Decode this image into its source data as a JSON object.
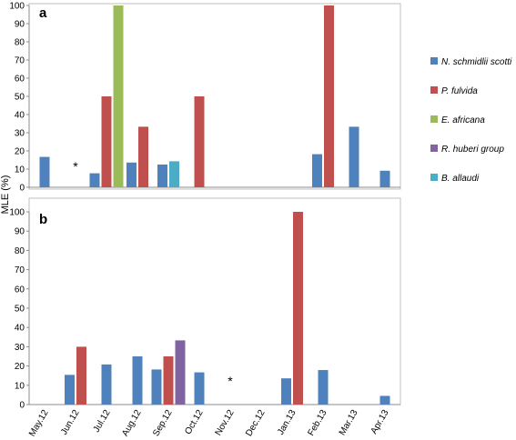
{
  "chart_data": {
    "type": "bar",
    "ylabel": "MLE (%)",
    "categories": [
      "May.12",
      "Jun.12",
      "Jul.12",
      "Aug.12",
      "Sep.12",
      "Oct.12",
      "Nov.12",
      "Dec.12",
      "Jan.13",
      "Feb.13",
      "Mar.13",
      "Apr.13"
    ],
    "ylim": [
      0,
      100
    ],
    "yticks": [
      0,
      10,
      20,
      30,
      40,
      50,
      60,
      70,
      80,
      90,
      100
    ],
    "grid": false,
    "legend_position": "right",
    "series_legend": [
      {
        "name": "N. schmidlii scotti",
        "color": "#4F81BD"
      },
      {
        "name": "P. fulvida",
        "color": "#C0504D"
      },
      {
        "name": "E. africana",
        "color": "#9BBB59"
      },
      {
        "name": "R. huberi group",
        "color": "#8064A2"
      },
      {
        "name": "B. allaudi",
        "color": "#4BACC6"
      }
    ],
    "panels": [
      {
        "label": "a",
        "annotation": {
          "text": "*",
          "category": "Jun.12"
        },
        "series": [
          {
            "name": "N. schmidlii scotti",
            "values": [
              16.7,
              null,
              7.7,
              13.6,
              12.5,
              null,
              null,
              null,
              null,
              18.2,
              33.3,
              9.1
            ]
          },
          {
            "name": "P. fulvida",
            "values": [
              null,
              null,
              50,
              33.3,
              null,
              50,
              null,
              null,
              null,
              100,
              null,
              null
            ]
          },
          {
            "name": "E. africana",
            "values": [
              null,
              null,
              100,
              null,
              null,
              null,
              null,
              null,
              null,
              null,
              null,
              null
            ]
          },
          {
            "name": "R. huberi group",
            "values": [
              null,
              null,
              null,
              null,
              null,
              null,
              null,
              null,
              null,
              null,
              null,
              null
            ]
          },
          {
            "name": "B. allaudi",
            "values": [
              null,
              null,
              null,
              null,
              14.3,
              null,
              null,
              null,
              null,
              null,
              null,
              null
            ]
          }
        ]
      },
      {
        "label": "b",
        "annotation": {
          "text": "*",
          "category": "Nov.12"
        },
        "series": [
          {
            "name": "N. schmidlii scotti",
            "values": [
              null,
              15.4,
              20.8,
              25,
              18.2,
              16.7,
              null,
              null,
              13.6,
              17.9,
              null,
              4.5
            ]
          },
          {
            "name": "P. fulvida",
            "values": [
              null,
              30,
              null,
              null,
              25,
              null,
              null,
              null,
              100,
              null,
              null,
              null
            ]
          },
          {
            "name": "E. africana",
            "values": [
              null,
              null,
              null,
              null,
              null,
              null,
              null,
              null,
              null,
              null,
              null,
              null
            ]
          },
          {
            "name": "R. huberi group",
            "values": [
              null,
              null,
              null,
              null,
              33.3,
              null,
              null,
              null,
              null,
              null,
              null,
              null
            ]
          },
          {
            "name": "B. allaudi",
            "values": [
              null,
              null,
              null,
              null,
              null,
              null,
              null,
              null,
              null,
              null,
              null,
              null
            ]
          }
        ]
      }
    ]
  }
}
